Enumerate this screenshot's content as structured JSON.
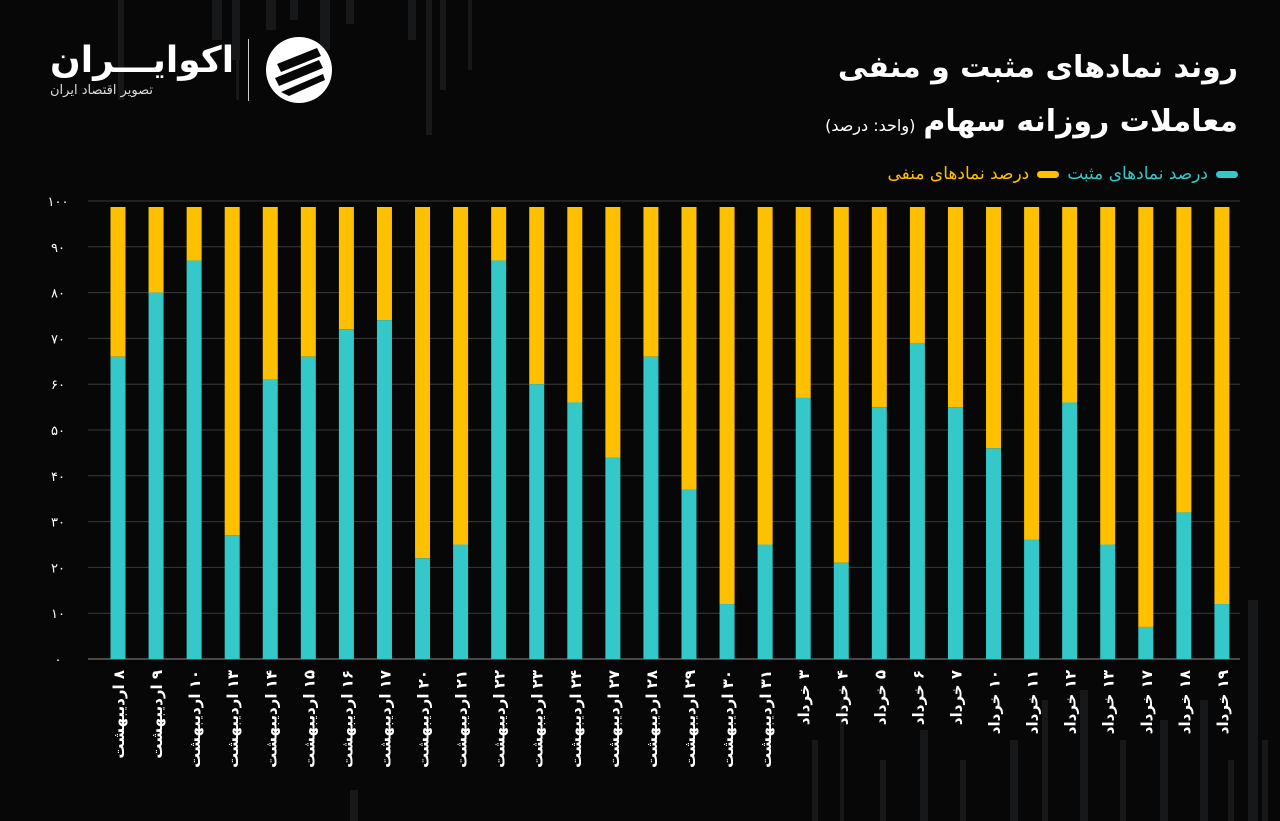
{
  "header": {
    "title_line1": "روند نمادهای مثبت و منفی",
    "title_line2": "معاملات روزانه سهام",
    "unit": "(واحد: درصد)"
  },
  "legend": {
    "positive_label": "درصد نمادهای مثبت",
    "negative_label": "درصد نمادهای منفی"
  },
  "logo": {
    "name": "اکوایـــران",
    "subtitle": "تصویر اقتصاد ایران"
  },
  "colors": {
    "positive": "#35c8c8",
    "negative": "#ffc000",
    "background": "#070707"
  },
  "chart_data": {
    "type": "bar",
    "stacked": true,
    "ylim": [
      0,
      100
    ],
    "yticks": [
      "۰",
      "۱۰",
      "۲۰",
      "۳۰",
      "۴۰",
      "۵۰",
      "۶۰",
      "۷۰",
      "۸۰",
      "۹۰",
      "۱۰۰"
    ],
    "categories": [
      "۸ اردیبهشت",
      "۹ اردیبهشت",
      "۱۰ اردیبهشت",
      "۱۳ اردیبهشت",
      "۱۴ اردیبهشت",
      "۱۵ اردیبهشت",
      "۱۶ اردیبهشت",
      "۱۷ اردیبهشت",
      "۲۰ اردیبهشت",
      "۲۱ اردیبهشت",
      "۲۲ اردیبهشت",
      "۲۳ اردیبهشت",
      "۲۴ اردیبهشت",
      "۲۷ اردیبهشت",
      "۲۸ اردیبهشت",
      "۲۹ اردیبهشت",
      "۳۰ اردیبهشت",
      "۳۱ اردیبهشت",
      "۳ خرداد",
      "۴ خرداد",
      "۵ خرداد",
      "۶ خرداد",
      "۷ خرداد",
      "۱۰ خرداد",
      "۱۱ خرداد",
      "۱۲ خرداد",
      "۱۳ خرداد",
      "۱۷ خرداد",
      "۱۸ خرداد",
      "۱۹ خرداد"
    ],
    "series": [
      {
        "name": "درصد نمادهای مثبت",
        "values": [
          66,
          80,
          87,
          27,
          61,
          66,
          72,
          74,
          22,
          25,
          87,
          60,
          56,
          44,
          66,
          37,
          12,
          25,
          57,
          21,
          55,
          69,
          55,
          46,
          26,
          56,
          25,
          7,
          32,
          12
        ]
      },
      {
        "name": "درصد نمادهای منفی",
        "values": [
          34,
          20,
          13,
          73,
          39,
          34,
          28,
          26,
          78,
          75,
          13,
          40,
          44,
          56,
          34,
          63,
          88,
          75,
          43,
          79,
          45,
          31,
          45,
          54,
          74,
          44,
          75,
          93,
          68,
          88
        ]
      }
    ]
  }
}
